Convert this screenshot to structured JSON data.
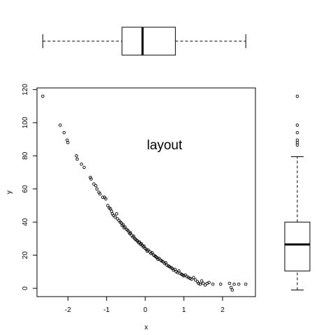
{
  "chart_data": [
    {
      "type": "scatter",
      "xlabel": "x",
      "ylabel": "y",
      "annotation": "layout",
      "xlim": [
        -2.8,
        2.85
      ],
      "ylim": [
        -5,
        121
      ],
      "x_ticks": [
        -2,
        -1,
        0,
        1,
        2
      ],
      "x_tick_labels": [
        "-2",
        "-1",
        "0",
        "1",
        "2"
      ],
      "y_ticks": [
        0,
        20,
        40,
        60,
        80,
        100,
        120
      ],
      "y_tick_labels": [
        "0",
        "20",
        "40",
        "60",
        "80",
        "100",
        "120"
      ],
      "annotation_position_data": [
        0.5,
        84
      ],
      "points": [
        [
          -2.65,
          116
        ],
        [
          -2.2,
          98.5
        ],
        [
          -2.1,
          94
        ],
        [
          -2.02,
          89.5
        ],
        [
          -2.0,
          88
        ],
        [
          -1.78,
          80
        ],
        [
          -1.76,
          78
        ],
        [
          -1.65,
          75
        ],
        [
          -1.58,
          73
        ],
        [
          -1.42,
          67
        ],
        [
          -1.4,
          66
        ],
        [
          -1.33,
          63
        ],
        [
          -1.28,
          62
        ],
        [
          -1.25,
          60
        ],
        [
          -1.2,
          58
        ],
        [
          -1.17,
          57
        ],
        [
          -1.1,
          55
        ],
        [
          -1.05,
          55
        ],
        [
          -1.02,
          54
        ],
        [
          -0.97,
          50
        ],
        [
          -0.93,
          48.5
        ],
        [
          -0.9,
          48
        ],
        [
          -0.87,
          46.5
        ],
        [
          -0.85,
          45
        ],
        [
          -0.82,
          44
        ],
        [
          -0.78,
          43
        ],
        [
          -0.74,
          45
        ],
        [
          -0.72,
          42
        ],
        [
          -0.68,
          41
        ],
        [
          -0.65,
          40
        ],
        [
          -0.62,
          39.5
        ],
        [
          -0.6,
          38
        ],
        [
          -0.57,
          38.5
        ],
        [
          -0.55,
          36.5
        ],
        [
          -0.52,
          37
        ],
        [
          -0.48,
          35.5
        ],
        [
          -0.45,
          35
        ],
        [
          -0.42,
          34
        ],
        [
          -0.4,
          33
        ],
        [
          -0.38,
          33.5
        ],
        [
          -0.35,
          32
        ],
        [
          -0.32,
          31
        ],
        [
          -0.3,
          31.5
        ],
        [
          -0.27,
          30
        ],
        [
          -0.25,
          29.5
        ],
        [
          -0.22,
          29
        ],
        [
          -0.2,
          28.5
        ],
        [
          -0.17,
          27.5
        ],
        [
          -0.15,
          28
        ],
        [
          -0.12,
          26.5
        ],
        [
          -0.1,
          27
        ],
        [
          -0.08,
          26
        ],
        [
          -0.05,
          25
        ],
        [
          -0.03,
          25.5
        ],
        [
          0.0,
          24
        ],
        [
          0.03,
          23.5
        ],
        [
          0.05,
          22.5
        ],
        [
          0.08,
          23
        ],
        [
          0.12,
          22
        ],
        [
          0.15,
          21
        ],
        [
          0.18,
          21.5
        ],
        [
          0.22,
          20
        ],
        [
          0.25,
          19.5
        ],
        [
          0.28,
          19
        ],
        [
          0.3,
          18.5
        ],
        [
          0.33,
          17.5
        ],
        [
          0.36,
          18
        ],
        [
          0.4,
          17
        ],
        [
          0.43,
          16.5
        ],
        [
          0.46,
          16
        ],
        [
          0.5,
          15
        ],
        [
          0.53,
          15.5
        ],
        [
          0.56,
          14
        ],
        [
          0.6,
          13.5
        ],
        [
          0.63,
          13
        ],
        [
          0.67,
          12.5
        ],
        [
          0.7,
          12
        ],
        [
          0.73,
          11
        ],
        [
          0.77,
          11.5
        ],
        [
          0.8,
          10
        ],
        [
          0.84,
          9.5
        ],
        [
          0.87,
          10.5
        ],
        [
          0.9,
          9
        ],
        [
          0.94,
          8.5
        ],
        [
          0.97,
          8
        ],
        [
          1.0,
          7.5
        ],
        [
          1.04,
          8
        ],
        [
          1.08,
          7
        ],
        [
          1.12,
          6.5
        ],
        [
          1.16,
          6
        ],
        [
          1.2,
          5.5
        ],
        [
          1.25,
          6.5
        ],
        [
          1.3,
          5
        ],
        [
          1.35,
          4
        ],
        [
          1.38,
          3
        ],
        [
          1.42,
          2.5
        ],
        [
          1.46,
          4.5
        ],
        [
          1.5,
          3
        ],
        [
          1.55,
          2
        ],
        [
          1.6,
          3
        ],
        [
          1.65,
          3.5
        ],
        [
          1.75,
          2.5
        ],
        [
          1.95,
          2.5
        ],
        [
          2.18,
          3
        ],
        [
          2.22,
          0.5
        ],
        [
          2.25,
          -1
        ],
        [
          2.3,
          2.5
        ],
        [
          2.42,
          2.5
        ],
        [
          2.6,
          2.5
        ]
      ]
    },
    {
      "type": "boxplot",
      "orientation": "horizontal",
      "variable": "x",
      "min": -2.65,
      "q1": -0.6,
      "median": -0.07,
      "q3": 0.78,
      "max": 2.6,
      "outliers": []
    },
    {
      "type": "boxplot",
      "orientation": "vertical",
      "variable": "y",
      "min": -1,
      "q1": 10.5,
      "median": 26.5,
      "q3": 40,
      "max": 79.5,
      "outliers": [
        86.5,
        88,
        89.5,
        94,
        98.5,
        116
      ]
    }
  ]
}
